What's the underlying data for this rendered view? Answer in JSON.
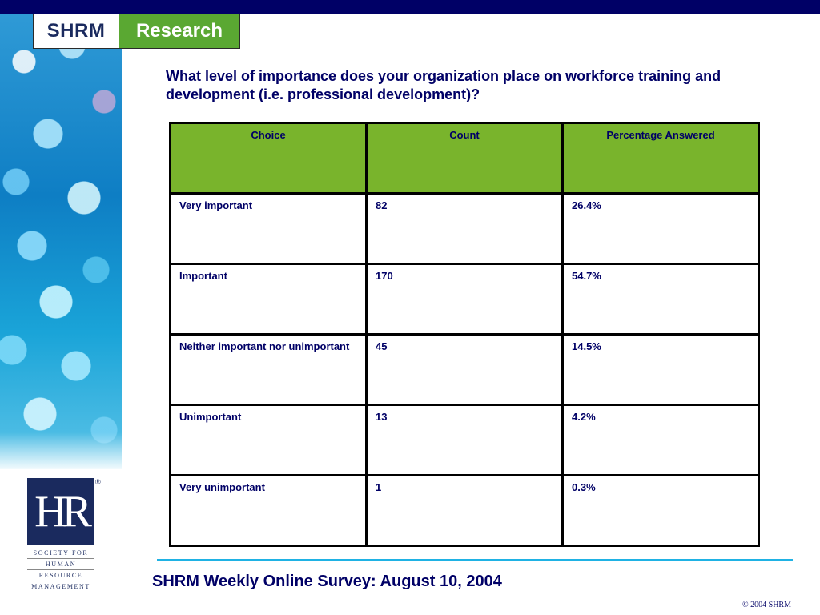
{
  "logo": {
    "shrm": "SHRM",
    "research": "Research"
  },
  "question": "What level of importance does your organization place on workforce training and development (i.e. professional development)?",
  "table": {
    "headers": [
      "Choice",
      "Count",
      "Percentage Answered"
    ],
    "rows": [
      [
        "Very important",
        "82",
        "26.4%"
      ],
      [
        "Important",
        "170",
        "54.7%"
      ],
      [
        "Neither important nor unimportant",
        "45",
        "14.5%"
      ],
      [
        "Unimportant",
        "13",
        "4.2%"
      ],
      [
        "Very unimportant",
        "1",
        "0.3%"
      ]
    ]
  },
  "hr_logo": {
    "letters": "HR",
    "reg": "®",
    "lines": [
      "SOCIETY FOR",
      "HUMAN",
      "RESOURCE",
      "MANAGEMENT"
    ]
  },
  "footer": {
    "title": "SHRM Weekly Online Survey: August 10, 2004",
    "copyright": "© 2004 SHRM"
  },
  "colors": {
    "navy": "#000066",
    "header_green": "#79b42c",
    "research_green": "#5aa832",
    "divider_blue": "#1fb2e4"
  }
}
